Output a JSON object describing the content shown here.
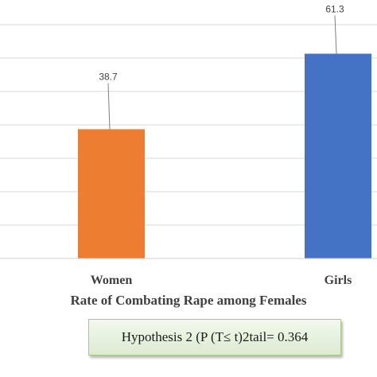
{
  "chart_data": {
    "type": "bar",
    "categories": [
      "Women",
      "Girls"
    ],
    "values": [
      38.7,
      61.3
    ],
    "data_labels": [
      "38.7",
      "61.3"
    ],
    "colors": [
      "#ED7D31",
      "#4472C4"
    ],
    "xlabel": "Rate of Combating Rape among Females",
    "ylabel": "",
    "ylim": [
      0,
      70
    ],
    "grid": true,
    "legend": "none"
  },
  "annotation": {
    "text": "Hypothesis 2 (P (T≤ t)2tail= 0.364"
  }
}
